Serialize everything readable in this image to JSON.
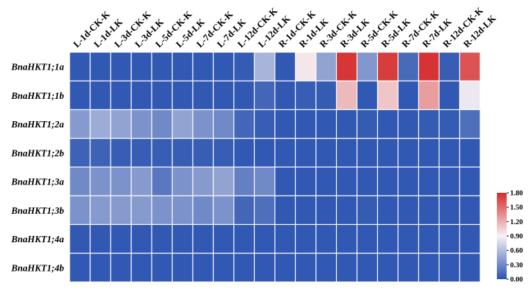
{
  "chart_data": {
    "type": "heatmap",
    "title": "",
    "xlabel": "",
    "ylabel": "",
    "columns": [
      "L-1d-CK-K",
      "L-1d-LK",
      "L-3d-CK-K",
      "L-3d-LK",
      "L-5d-CK-K",
      "L-5d-LK",
      "L-7d-CK-K",
      "L-7d-LK",
      "L-12d-CK-K",
      "L-12d-LK",
      "R-1d-CK-K",
      "R-1d-LK",
      "R-3d-CK-K",
      "R-3d-LK",
      "R-5d-CK-K",
      "R-5d-LK",
      "R-7d-CK-K",
      "R-7d-LK",
      "R-12d-CK-K",
      "R-12d-LK"
    ],
    "rows": [
      "BnaHKT1;1a",
      "BnaHKT1;1b",
      "BnaHKT1;2a",
      "BnaHKT1;2b",
      "BnaHKT1;3a",
      "BnaHKT1;3b",
      "BnaHKT1;4a",
      "BnaHKT1;4b"
    ],
    "values": [
      [
        0.02,
        0.02,
        0.02,
        0.02,
        0.02,
        0.02,
        0.02,
        0.02,
        0.04,
        0.55,
        0.02,
        0.95,
        0.45,
        1.75,
        0.38,
        1.72,
        0.12,
        1.76,
        0.05,
        1.62
      ],
      [
        0.02,
        0.02,
        0.02,
        0.02,
        0.02,
        0.02,
        0.02,
        0.02,
        0.02,
        0.1,
        0.02,
        0.05,
        0.04,
        1.15,
        0.02,
        1.1,
        0.02,
        1.28,
        0.02,
        0.85
      ],
      [
        0.4,
        0.5,
        0.45,
        0.35,
        0.3,
        0.45,
        0.35,
        0.3,
        0.1,
        0.05,
        0.02,
        0.02,
        0.02,
        0.02,
        0.04,
        0.02,
        0.02,
        0.04,
        0.04,
        0.15
      ],
      [
        0.08,
        0.08,
        0.05,
        0.05,
        0.05,
        0.05,
        0.05,
        0.05,
        0.02,
        0.02,
        0.02,
        0.02,
        0.02,
        0.02,
        0.02,
        0.02,
        0.02,
        0.02,
        0.02,
        0.02
      ],
      [
        0.3,
        0.35,
        0.35,
        0.4,
        0.2,
        0.35,
        0.4,
        0.45,
        0.25,
        0.3,
        0.02,
        0.02,
        0.02,
        0.02,
        0.02,
        0.02,
        0.02,
        0.02,
        0.02,
        0.02
      ],
      [
        0.35,
        0.4,
        0.4,
        0.4,
        0.35,
        0.35,
        0.3,
        0.35,
        0.1,
        0.15,
        0.02,
        0.02,
        0.02,
        0.02,
        0.04,
        0.02,
        0.02,
        0.02,
        0.02,
        0.02
      ],
      [
        0.02,
        0.02,
        0.02,
        0.02,
        0.02,
        0.02,
        0.02,
        0.02,
        0.02,
        0.02,
        0.02,
        0.02,
        0.02,
        0.02,
        0.02,
        0.02,
        0.02,
        0.02,
        0.02,
        0.02
      ],
      [
        0.02,
        0.02,
        0.02,
        0.02,
        0.02,
        0.02,
        0.02,
        0.02,
        0.02,
        0.02,
        0.02,
        0.02,
        0.02,
        0.02,
        0.02,
        0.02,
        0.02,
        0.02,
        0.02,
        0.02
      ]
    ],
    "colorbar": {
      "min": 0.0,
      "max": 1.8,
      "ticks": [
        "0.00",
        "0.30",
        "0.60",
        "0.90",
        "1.20",
        "1.50",
        "1.80"
      ],
      "colors": [
        "#2c55b0",
        "#f7f1f4",
        "#d42b2b"
      ]
    },
    "legend_position": "right",
    "grid": true
  }
}
